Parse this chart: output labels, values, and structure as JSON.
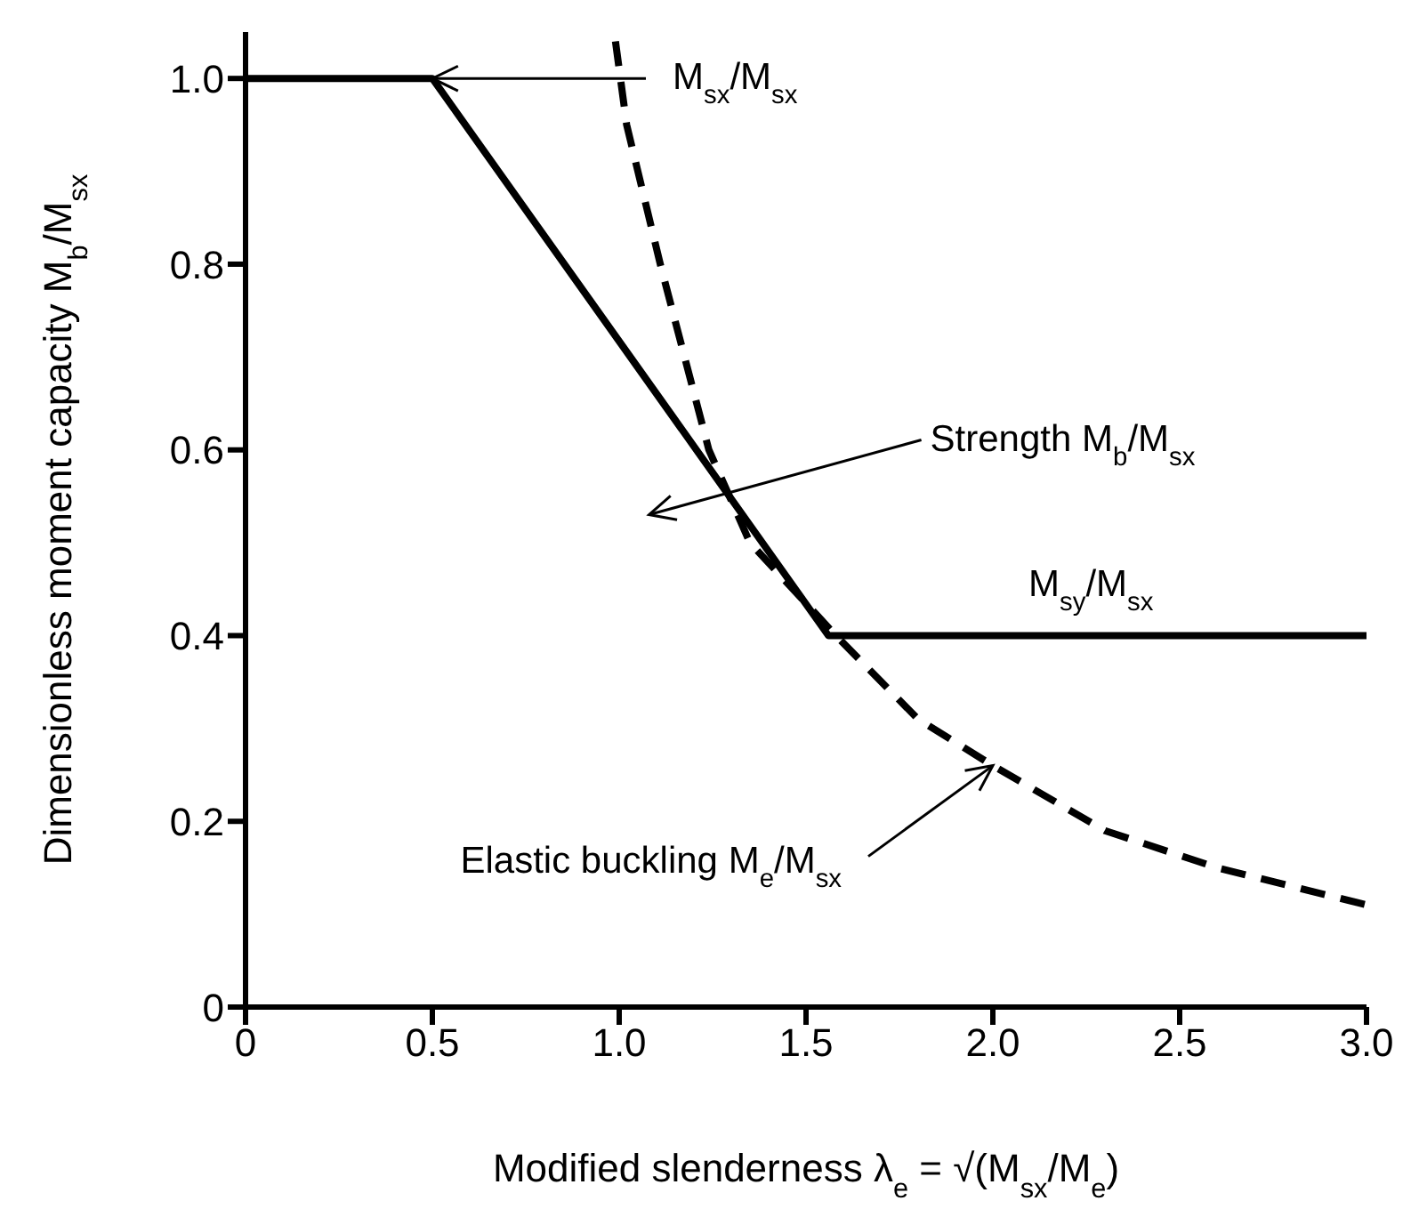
{
  "chart_data": {
    "type": "line",
    "xlabel": "Modified slenderness λ$_{e}$ = √(M$_{sx}$/M$_{e}$)",
    "ylabel": "Dimensionless moment capacity M$_{b}$/M$_{sx}$",
    "xlim": [
      0,
      3
    ],
    "xticks": [
      0,
      0.5,
      {
        "value": 1,
        "label": "1.0"
      },
      1.5,
      {
        "value": 2,
        "label": "2.0"
      },
      2.5,
      {
        "value": 3,
        "label": "3.0"
      }
    ],
    "ylim": [
      0,
      1.05
    ],
    "yticks": [
      0,
      0.2,
      0.4,
      0.6,
      0.8,
      {
        "value": 1,
        "label": "1.0"
      }
    ],
    "marker": "none",
    "series": [
      {
        "color": "#000000",
        "line_style": "solid",
        "x": [
          0,
          0.5,
          1.56,
          3
        ],
        "values": [
          1,
          1,
          0.4,
          0.4
        ]
      },
      {
        "color": "#000000",
        "line_style": "dashed",
        "x": [
          0.99,
          1.02,
          1.11,
          1.24,
          1.35,
          1.58,
          1.8,
          2.0,
          2.3,
          2.6,
          3.0
        ],
        "values": [
          1.04,
          0.95,
          0.8,
          0.6,
          0.5,
          0.4,
          0.31,
          0.26,
          0.19,
          0.15,
          0.11
        ]
      }
    ],
    "annotations": [
      {
        "text": "M$_{sx}$/M$_{sx}$",
        "x": 0.5,
        "y": 1.0
      },
      "Strength M$_{b}$/M$_{sx}$",
      "M$_{sy}$/M$_{sx}$",
      {
        "text": "Elastic buckling M$_{e}$/M$_{sx}$",
        "x": 2.0,
        "y": 0.26
      }
    ]
  }
}
